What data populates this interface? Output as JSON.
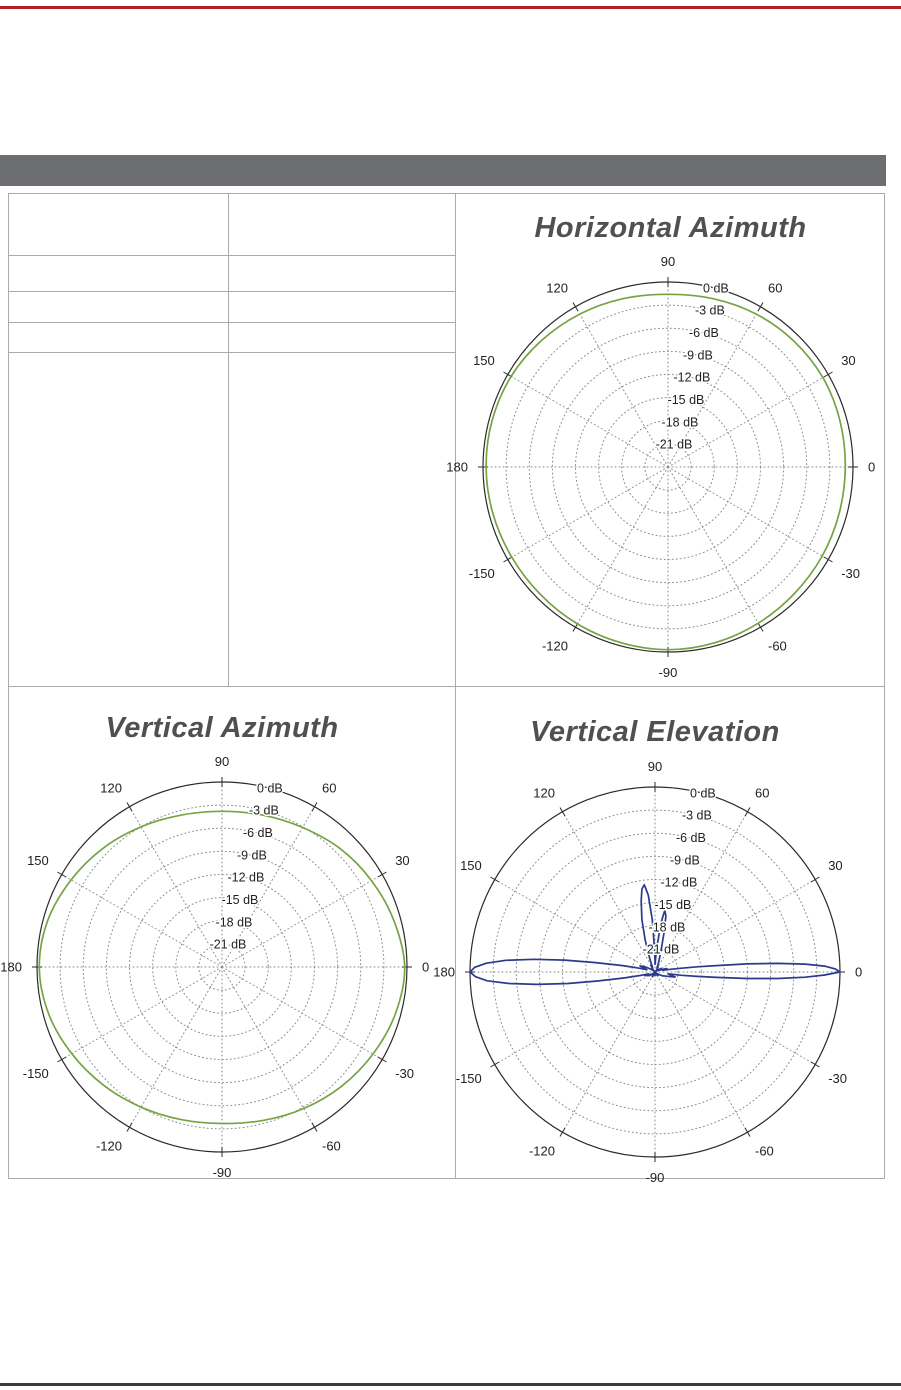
{
  "page": {
    "top_rule_color": "#b01f24",
    "bottom_rule_color": "#3c3c3e",
    "header_bar_color": "#6d6e71",
    "grid_line_color": "#a8aaad"
  },
  "chart_data": [
    {
      "type": "polar-line",
      "title": "Horizontal Azimuth",
      "angle_ticks": [
        "90",
        "60",
        "30",
        "0",
        "-30",
        "-60",
        "-90",
        "-120",
        "-150",
        "180",
        "150",
        "120"
      ],
      "radial_ticks": [
        "0 dB",
        "-3 dB",
        "-6 dB",
        "-9 dB",
        "-12 dB",
        "-15 dB",
        "-18 dB",
        "-21 dB"
      ],
      "radial_min_db": -24,
      "radial_max_db": 0,
      "radial_label_angle_deg": 75,
      "grid": "dotted-polar",
      "legend": "none",
      "series": [
        {
          "name": "horizontal-azimuth-gain",
          "color": "#76a343",
          "smooth": true,
          "points": [
            [
              0,
              -1.0
            ],
            [
              15,
              -0.9
            ],
            [
              30,
              -0.8
            ],
            [
              45,
              -0.9
            ],
            [
              60,
              -1.1
            ],
            [
              75,
              -1.4
            ],
            [
              90,
              -1.6
            ],
            [
              105,
              -1.4
            ],
            [
              120,
              -1.1
            ],
            [
              135,
              -0.8
            ],
            [
              150,
              -0.5
            ],
            [
              165,
              -0.4
            ],
            [
              180,
              -0.4
            ],
            [
              195,
              -0.5
            ],
            [
              210,
              -0.6
            ],
            [
              225,
              -0.6
            ],
            [
              240,
              -0.5
            ],
            [
              255,
              -0.4
            ],
            [
              270,
              -0.3
            ],
            [
              285,
              -0.4
            ],
            [
              300,
              -0.6
            ],
            [
              315,
              -0.8
            ],
            [
              330,
              -0.9
            ],
            [
              345,
              -1.0
            ]
          ]
        }
      ]
    },
    {
      "type": "polar-line",
      "title": "Vertical Azimuth",
      "angle_ticks": [
        "90",
        "60",
        "30",
        "0",
        "-30",
        "-60",
        "-90",
        "-120",
        "-150",
        "180",
        "150",
        "120"
      ],
      "radial_ticks": [
        "0 dB",
        "-3 dB",
        "-6 dB",
        "-9 dB",
        "-12 dB",
        "-15 dB",
        "-18 dB",
        "-21 dB"
      ],
      "radial_min_db": -24,
      "radial_max_db": 0,
      "radial_label_angle_deg": 75,
      "grid": "dotted-polar",
      "legend": "none",
      "series": [
        {
          "name": "vertical-azimuth-gain",
          "color": "#76a343",
          "smooth": true,
          "points": [
            [
              0,
              -0.3
            ],
            [
              15,
              -0.9
            ],
            [
              30,
              -1.6
            ],
            [
              45,
              -2.3
            ],
            [
              60,
              -3.1
            ],
            [
              75,
              -3.6
            ],
            [
              90,
              -3.8
            ],
            [
              105,
              -3.6
            ],
            [
              120,
              -3.0
            ],
            [
              135,
              -2.2
            ],
            [
              150,
              -1.4
            ],
            [
              165,
              -0.6
            ],
            [
              180,
              -0.3
            ],
            [
              195,
              -0.7
            ],
            [
              210,
              -1.5
            ],
            [
              225,
              -2.3
            ],
            [
              240,
              -3.0
            ],
            [
              255,
              -3.5
            ],
            [
              270,
              -3.7
            ],
            [
              285,
              -3.4
            ],
            [
              300,
              -2.8
            ],
            [
              315,
              -2.1
            ],
            [
              330,
              -1.4
            ],
            [
              345,
              -0.7
            ]
          ]
        }
      ]
    },
    {
      "type": "polar-line",
      "title": "Vertical Elevation",
      "angle_ticks": [
        "90",
        "60",
        "30",
        "0",
        "-30",
        "-60",
        "-90",
        "-120",
        "-150",
        "180",
        "150",
        "120"
      ],
      "radial_ticks": [
        "0 dB",
        "-3 dB",
        "-6 dB",
        "-9 dB",
        "-12 dB",
        "-15 dB",
        "-18 dB",
        "-21 dB"
      ],
      "radial_min_db": -24,
      "radial_max_db": 0,
      "radial_label_angle_deg": 75,
      "grid": "dotted-polar",
      "legend": "none",
      "series": [
        {
          "name": "vertical-elevation-gain",
          "color": "#2b3a8c",
          "smooth": false,
          "points": [
            [
              0,
              0
            ],
            [
              1,
              -0.6
            ],
            [
              2,
              -2
            ],
            [
              3,
              -4.5
            ],
            [
              4,
              -8
            ],
            [
              5,
              -12
            ],
            [
              6,
              -16
            ],
            [
              7,
              -18.5
            ],
            [
              8,
              -20.5
            ],
            [
              10,
              -22
            ],
            [
              13,
              -23
            ],
            [
              16,
              -22.4
            ],
            [
              19,
              -22.9
            ],
            [
              22,
              -23.3
            ],
            [
              25,
              -23.6
            ],
            [
              30,
              -23.1
            ],
            [
              35,
              -23.6
            ],
            [
              40,
              -23.8
            ],
            [
              45,
              -24
            ],
            [
              50,
              -23.8
            ],
            [
              55,
              -23.5
            ],
            [
              60,
              -23.2
            ],
            [
              65,
              -23.4
            ],
            [
              70,
              -22.6
            ],
            [
              74,
              -21.2
            ],
            [
              77,
              -18.8
            ],
            [
              79,
              -16.6
            ],
            [
              81,
              -15.9
            ],
            [
              83,
              -17.6
            ],
            [
              85,
              -20.2
            ],
            [
              87,
              -22
            ],
            [
              89,
              -23
            ],
            [
              91,
              -21.2
            ],
            [
              93,
              -17.2
            ],
            [
              95,
              -14
            ],
            [
              97,
              -12.6
            ],
            [
              99,
              -13.1
            ],
            [
              101,
              -14.6
            ],
            [
              104,
              -17
            ],
            [
              107,
              -19.6
            ],
            [
              110,
              -21.6
            ],
            [
              114,
              -22.8
            ],
            [
              118,
              -23.3
            ],
            [
              122,
              -23
            ],
            [
              126,
              -23.4
            ],
            [
              130,
              -23.6
            ],
            [
              135,
              -24
            ],
            [
              140,
              -23.7
            ],
            [
              145,
              -23.4
            ],
            [
              150,
              -23
            ],
            [
              154,
              -22.4
            ],
            [
              158,
              -21.9
            ],
            [
              161,
              -22.4
            ],
            [
              164,
              -22.9
            ],
            [
              167,
              -21.6
            ],
            [
              169,
              -19.6
            ],
            [
              171,
              -16.2
            ],
            [
              172.5,
              -12.2
            ],
            [
              174,
              -8.2
            ],
            [
              175.5,
              -4.6
            ],
            [
              177,
              -2.1
            ],
            [
              178.5,
              -0.6
            ],
            [
              180,
              0
            ],
            [
              181.5,
              -0.7
            ],
            [
              183,
              -2.2
            ],
            [
              184.5,
              -5
            ],
            [
              186,
              -8.6
            ],
            [
              187.5,
              -12.6
            ],
            [
              189,
              -16.6
            ],
            [
              191,
              -20
            ],
            [
              193,
              -22
            ],
            [
              196,
              -23.1
            ],
            [
              200,
              -22.6
            ],
            [
              204,
              -23.1
            ],
            [
              208,
              -23.4
            ],
            [
              212,
              -23.1
            ],
            [
              216,
              -23.5
            ],
            [
              220,
              -23.8
            ],
            [
              225,
              -24
            ],
            [
              230,
              -23.8
            ],
            [
              235,
              -23.5
            ],
            [
              240,
              -23.3
            ],
            [
              245,
              -23.5
            ],
            [
              250,
              -23.7
            ],
            [
              255,
              -23.9
            ],
            [
              260,
              -24
            ],
            [
              265,
              -23.8
            ],
            [
              270,
              -23.6
            ],
            [
              275,
              -23.8
            ],
            [
              280,
              -24
            ],
            [
              285,
              -23.8
            ],
            [
              290,
              -23.6
            ],
            [
              295,
              -23.8
            ],
            [
              300,
              -24
            ],
            [
              305,
              -23.7
            ],
            [
              310,
              -23.4
            ],
            [
              315,
              -23.6
            ],
            [
              320,
              -23.8
            ],
            [
              325,
              -23.5
            ],
            [
              330,
              -23.2
            ],
            [
              335,
              -22.8
            ],
            [
              340,
              -22.4
            ],
            [
              343,
              -21.9
            ],
            [
              346,
              -21.3
            ],
            [
              349,
              -21.9
            ],
            [
              352,
              -22.3
            ],
            [
              353,
              -20.5
            ],
            [
              354,
              -18.5
            ],
            [
              355,
              -16
            ],
            [
              356,
              -12
            ],
            [
              357,
              -8
            ],
            [
              358,
              -4.5
            ],
            [
              359,
              -2
            ]
          ]
        }
      ]
    }
  ]
}
